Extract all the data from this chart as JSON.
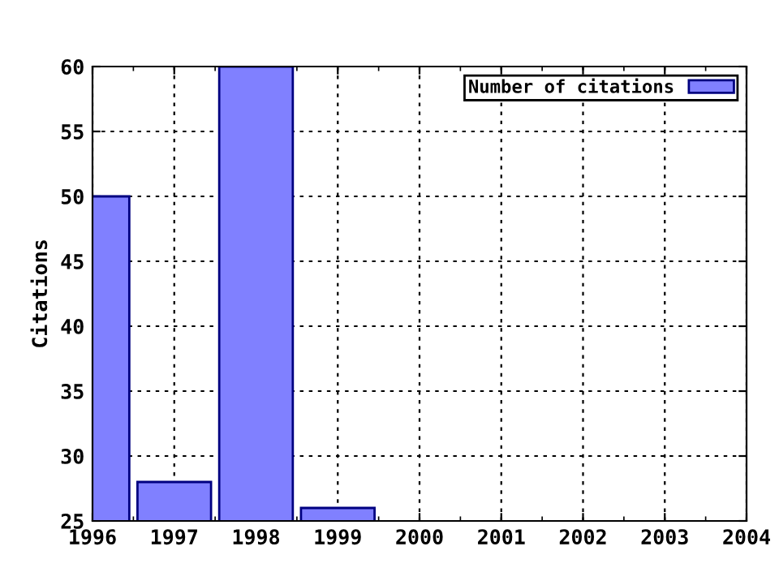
{
  "chart_data": {
    "type": "bar",
    "ylabel": "Citations",
    "x": [
      1996,
      1997,
      1998,
      1999
    ],
    "series": [
      {
        "name": "Number of citations",
        "color": "#8080ff",
        "values": [
          50,
          28,
          60,
          26
        ]
      }
    ],
    "xlim": [
      1996,
      2004
    ],
    "xticks": [
      1996,
      1997,
      1998,
      1999,
      2000,
      2001,
      2002,
      2003,
      2004
    ],
    "ylim": [
      25,
      60
    ],
    "yticks": [
      25,
      30,
      35,
      40,
      45,
      50,
      55,
      60
    ],
    "grid": true,
    "legend": "top right"
  }
}
